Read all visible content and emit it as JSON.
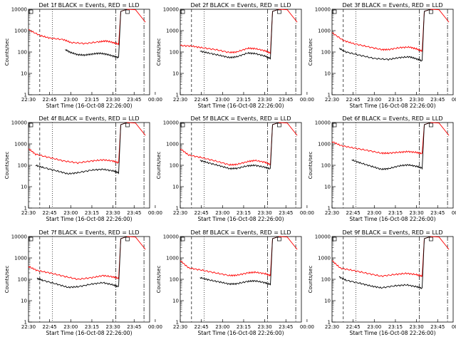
{
  "chart_data": {
    "type": "line",
    "layout": "grid-3x3",
    "ylabel": "Counts/sec",
    "yscale": "log",
    "ylim": [
      1,
      10000
    ],
    "ytick_labels": [
      "1",
      "10",
      "100",
      "1000",
      "10000"
    ],
    "xlabel": "Start Time (16-Oct-08 22:26:00)",
    "xtick_labels": [
      "22:30",
      "22:45",
      "23:00",
      "23:15",
      "23:30",
      "23:45",
      "00:00"
    ],
    "series_colors": {
      "events": "#000000",
      "lld": "#ff0000"
    },
    "panels": [
      {
        "title": "Det 1f BLACK = Events, RED = LLD",
        "events": [
          [
            22.6,
            130
          ],
          [
            23.0,
            95
          ],
          [
            23.5,
            75
          ],
          [
            24.0,
            72
          ],
          [
            24.5,
            80
          ],
          [
            25.0,
            88
          ],
          [
            25.5,
            80
          ],
          [
            26.0,
            65
          ],
          [
            26.4,
            55
          ]
        ],
        "lld": [
          [
            20.0,
            1100
          ],
          [
            20.8,
            600
          ],
          [
            21.5,
            450
          ],
          [
            22.5,
            380
          ],
          [
            23.0,
            280
          ],
          [
            24.0,
            250
          ],
          [
            25.0,
            300
          ],
          [
            25.5,
            330
          ],
          [
            26.0,
            280
          ],
          [
            26.4,
            230
          ]
        ]
      },
      {
        "title": "Det 2f BLACK = Events, RED = LLD",
        "events": [
          [
            21.4,
            110
          ],
          [
            22.0,
            90
          ],
          [
            22.8,
            70
          ],
          [
            23.5,
            55
          ],
          [
            24.0,
            60
          ],
          [
            24.8,
            90
          ],
          [
            25.3,
            85
          ],
          [
            26.0,
            65
          ],
          [
            26.4,
            50
          ]
        ],
        "lld": [
          [
            20.0,
            200
          ],
          [
            20.8,
            190
          ],
          [
            21.5,
            160
          ],
          [
            22.5,
            130
          ],
          [
            23.5,
            95
          ],
          [
            24.0,
            100
          ],
          [
            24.8,
            150
          ],
          [
            25.3,
            145
          ],
          [
            26.0,
            115
          ],
          [
            26.4,
            90
          ]
        ]
      },
      {
        "title": "Det 3f BLACK = Events, RED = LLD",
        "events": [
          [
            20.5,
            150
          ],
          [
            21.0,
            100
          ],
          [
            22.0,
            70
          ],
          [
            23.0,
            50
          ],
          [
            24.0,
            45
          ],
          [
            24.8,
            55
          ],
          [
            25.5,
            60
          ],
          [
            26.0,
            48
          ],
          [
            26.4,
            38
          ]
        ],
        "lld": [
          [
            20.0,
            800
          ],
          [
            20.8,
            350
          ],
          [
            21.5,
            250
          ],
          [
            22.5,
            180
          ],
          [
            23.5,
            130
          ],
          [
            24.0,
            130
          ],
          [
            24.8,
            160
          ],
          [
            25.5,
            170
          ],
          [
            26.0,
            140
          ],
          [
            26.4,
            110
          ]
        ]
      },
      {
        "title": "Det 4f BLACK = Events, RED = LLD",
        "events": [
          [
            20.5,
            100
          ],
          [
            21.0,
            80
          ],
          [
            22.0,
            55
          ],
          [
            22.8,
            40
          ],
          [
            23.5,
            45
          ],
          [
            24.5,
            60
          ],
          [
            25.3,
            65
          ],
          [
            26.0,
            55
          ],
          [
            26.4,
            45
          ]
        ],
        "lld": [
          [
            20.0,
            600
          ],
          [
            20.5,
            330
          ],
          [
            21.5,
            230
          ],
          [
            22.5,
            160
          ],
          [
            23.5,
            130
          ],
          [
            24.5,
            160
          ],
          [
            25.3,
            180
          ],
          [
            26.0,
            160
          ],
          [
            26.4,
            130
          ]
        ]
      },
      {
        "title": "Det 5f BLACK = Events, RED = LLD",
        "events": [
          [
            21.4,
            170
          ],
          [
            22.0,
            130
          ],
          [
            22.8,
            95
          ],
          [
            23.5,
            70
          ],
          [
            24.0,
            72
          ],
          [
            24.8,
            95
          ],
          [
            25.3,
            100
          ],
          [
            26.0,
            82
          ],
          [
            26.4,
            68
          ]
        ],
        "lld": [
          [
            20.0,
            600
          ],
          [
            20.6,
            300
          ],
          [
            21.5,
            230
          ],
          [
            22.5,
            160
          ],
          [
            23.5,
            105
          ],
          [
            24.0,
            110
          ],
          [
            24.8,
            150
          ],
          [
            25.3,
            170
          ],
          [
            26.0,
            140
          ],
          [
            26.4,
            110
          ]
        ]
      },
      {
        "title": "Det 6f BLACK = Events, RED = LLD",
        "events": [
          [
            21.4,
            180
          ],
          [
            22.0,
            130
          ],
          [
            22.8,
            90
          ],
          [
            23.5,
            65
          ],
          [
            24.0,
            70
          ],
          [
            24.8,
            95
          ],
          [
            25.4,
            105
          ],
          [
            26.0,
            90
          ],
          [
            26.4,
            75
          ]
        ],
        "lld": [
          [
            20.0,
            1300
          ],
          [
            20.6,
            850
          ],
          [
            21.5,
            650
          ],
          [
            22.5,
            500
          ],
          [
            23.5,
            370
          ],
          [
            24.0,
            370
          ],
          [
            24.8,
            410
          ],
          [
            25.4,
            440
          ],
          [
            26.0,
            400
          ],
          [
            26.4,
            350
          ]
        ]
      },
      {
        "title": "Det 7f BLACK = Events, RED = LLD",
        "events": [
          [
            20.6,
            110
          ],
          [
            21.0,
            90
          ],
          [
            22.0,
            60
          ],
          [
            22.8,
            42
          ],
          [
            23.5,
            45
          ],
          [
            24.5,
            60
          ],
          [
            25.3,
            70
          ],
          [
            26.0,
            55
          ],
          [
            26.4,
            45
          ]
        ],
        "lld": [
          [
            20.0,
            400
          ],
          [
            20.6,
            260
          ],
          [
            21.5,
            200
          ],
          [
            22.5,
            140
          ],
          [
            23.5,
            100
          ],
          [
            24.5,
            120
          ],
          [
            25.3,
            150
          ],
          [
            26.0,
            130
          ],
          [
            26.4,
            110
          ]
        ]
      },
      {
        "title": "Det 8f BLACK = Events, RED = LLD",
        "events": [
          [
            21.4,
            120
          ],
          [
            22.0,
            95
          ],
          [
            22.8,
            75
          ],
          [
            23.5,
            60
          ],
          [
            24.0,
            62
          ],
          [
            24.8,
            80
          ],
          [
            25.3,
            85
          ],
          [
            26.0,
            70
          ],
          [
            26.4,
            58
          ]
        ],
        "lld": [
          [
            20.0,
            750
          ],
          [
            20.6,
            340
          ],
          [
            21.5,
            270
          ],
          [
            22.5,
            200
          ],
          [
            23.5,
            150
          ],
          [
            24.0,
            155
          ],
          [
            24.8,
            200
          ],
          [
            25.3,
            215
          ],
          [
            26.0,
            185
          ],
          [
            26.4,
            150
          ]
        ]
      },
      {
        "title": "Det 9f BLACK = Events, RED = LLD",
        "events": [
          [
            20.5,
            130
          ],
          [
            21.0,
            90
          ],
          [
            22.0,
            65
          ],
          [
            22.8,
            48
          ],
          [
            23.5,
            40
          ],
          [
            24.5,
            50
          ],
          [
            25.3,
            55
          ],
          [
            26.0,
            45
          ],
          [
            26.4,
            38
          ]
        ],
        "lld": [
          [
            20.0,
            750
          ],
          [
            20.6,
            330
          ],
          [
            21.5,
            260
          ],
          [
            22.5,
            190
          ],
          [
            23.5,
            140
          ],
          [
            24.5,
            170
          ],
          [
            25.3,
            190
          ],
          [
            26.0,
            165
          ],
          [
            26.4,
            140
          ]
        ]
      }
    ]
  }
}
